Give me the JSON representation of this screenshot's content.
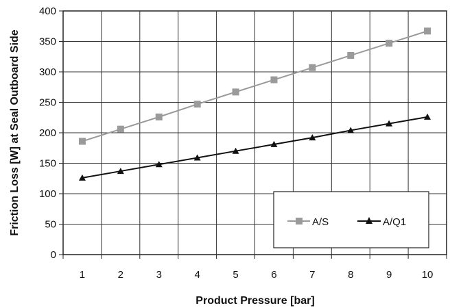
{
  "chart_data": {
    "type": "line",
    "xlabel": "Product Pressure [bar]",
    "ylabel": "Friction Loss [W] at Seal Outboard Side",
    "x": [
      1,
      2,
      3,
      4,
      5,
      6,
      7,
      8,
      9,
      10
    ],
    "xlim": [
      0.5,
      10.5
    ],
    "ylim": [
      0,
      400
    ],
    "yticks": [
      0,
      50,
      100,
      150,
      200,
      250,
      300,
      350,
      400
    ],
    "grid": true,
    "legend_position": "lower-right",
    "series": [
      {
        "name": "A/S",
        "marker": "square",
        "color": "#9a9a9a",
        "values": [
          186,
          206,
          226,
          247,
          267,
          287,
          307,
          327,
          347,
          367
        ]
      },
      {
        "name": "A/Q1",
        "marker": "triangle",
        "color": "#111111",
        "values": [
          126,
          137,
          148,
          159,
          170,
          181,
          192,
          204,
          215,
          226
        ]
      }
    ]
  }
}
